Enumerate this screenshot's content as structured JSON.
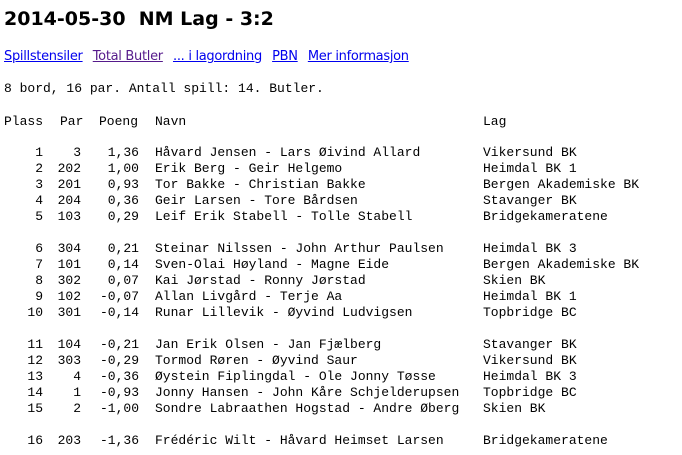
{
  "title": "2014-05-30  NM Lag - 3:2",
  "links": [
    {
      "label": "Spillstensiler",
      "visited": false
    },
    {
      "label": "Total Butler",
      "visited": true
    },
    {
      "label": "... i lagordning",
      "visited": false
    },
    {
      "label": "PBN",
      "visited": false
    },
    {
      "label": "Mer informasjon",
      "visited": false
    }
  ],
  "info": "8 bord, 16 par. Antall spill: 14. Butler.",
  "table": {
    "headers": {
      "plass": "Plass",
      "par": "Par",
      "poeng": "Poeng",
      "navn": "Navn",
      "lag": "Lag"
    },
    "groups": [
      [
        {
          "plass": "1",
          "par": "3",
          "poeng": "1,36",
          "navn": "Håvard Jensen - Lars Øivind Allard",
          "lag": "Vikersund BK"
        },
        {
          "plass": "2",
          "par": "202",
          "poeng": "1,00",
          "navn": "Erik Berg - Geir Helgemo",
          "lag": "Heimdal BK 1"
        },
        {
          "plass": "3",
          "par": "201",
          "poeng": "0,93",
          "navn": "Tor Bakke - Christian Bakke",
          "lag": "Bergen Akademiske BK"
        },
        {
          "plass": "4",
          "par": "204",
          "poeng": "0,36",
          "navn": "Geir Larsen - Tore Bårdsen",
          "lag": "Stavanger BK"
        },
        {
          "plass": "5",
          "par": "103",
          "poeng": "0,29",
          "navn": "Leif Erik Stabell - Tolle Stabell",
          "lag": "Bridgekameratene"
        }
      ],
      [
        {
          "plass": "6",
          "par": "304",
          "poeng": "0,21",
          "navn": "Steinar Nilssen - John Arthur Paulsen",
          "lag": "Heimdal BK 3"
        },
        {
          "plass": "7",
          "par": "101",
          "poeng": "0,14",
          "navn": "Sven-Olai Høyland - Magne Eide",
          "lag": "Bergen Akademiske BK"
        },
        {
          "plass": "8",
          "par": "302",
          "poeng": "0,07",
          "navn": "Kai Jørstad - Ronny Jørstad",
          "lag": "Skien BK"
        },
        {
          "plass": "9",
          "par": "102",
          "poeng": "-0,07",
          "navn": "Allan Livgård - Terje Aa",
          "lag": "Heimdal BK 1"
        },
        {
          "plass": "10",
          "par": "301",
          "poeng": "-0,14",
          "navn": "Runar Lillevik - Øyvind Ludvigsen",
          "lag": "Topbridge BC"
        }
      ],
      [
        {
          "plass": "11",
          "par": "104",
          "poeng": "-0,21",
          "navn": "Jan Erik Olsen - Jan Fjælberg",
          "lag": "Stavanger BK"
        },
        {
          "plass": "12",
          "par": "303",
          "poeng": "-0,29",
          "navn": "Tormod Røren - Øyvind Saur",
          "lag": "Vikersund BK"
        },
        {
          "plass": "13",
          "par": "4",
          "poeng": "-0,36",
          "navn": "Øystein Fiplingdal - Ole Jonny Tøsse",
          "lag": "Heimdal BK 3"
        },
        {
          "plass": "14",
          "par": "1",
          "poeng": "-0,93",
          "navn": "Jonny Hansen - John Kåre Schjelderupsen",
          "lag": "Topbridge BC"
        },
        {
          "plass": "15",
          "par": "2",
          "poeng": "-1,00",
          "navn": "Sondre Labraathen Hogstad - Andre Øberg",
          "lag": "Skien BK"
        }
      ],
      [
        {
          "plass": "16",
          "par": "203",
          "poeng": "-1,36",
          "navn": "Frédéric Wilt - Håvard Heimset Larsen",
          "lag": "Bridgekameratene"
        }
      ]
    ]
  }
}
